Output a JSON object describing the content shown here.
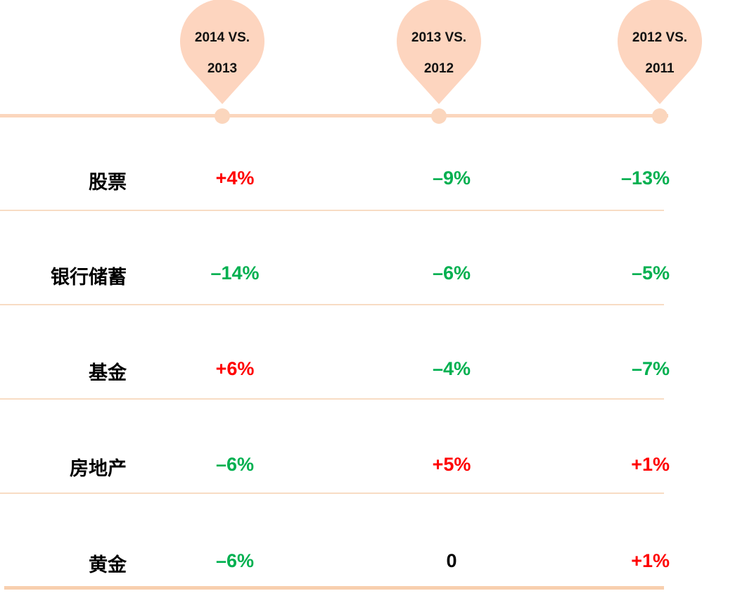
{
  "colors": {
    "pin": "#fdd5bf",
    "timeline": "#fbd6bd",
    "positive": "#ff0000",
    "negative": "#00b050",
    "neutral": "#000000"
  },
  "chart_data": {
    "type": "table",
    "columns": [
      "2014 VS.\n2013",
      "2013 VS.\n2012",
      "2012 VS.\n2011"
    ],
    "rows": [
      {
        "label": "股票",
        "values": [
          "+4%",
          "–9%",
          "–13%"
        ]
      },
      {
        "label": "银行储蓄",
        "values": [
          "–14%",
          "–6%",
          "–5%"
        ]
      },
      {
        "label": "基金",
        "values": [
          "+6%",
          "–4%",
          "–7%"
        ]
      },
      {
        "label": "房地产",
        "values": [
          "–6%",
          "+5%",
          "+1%"
        ]
      },
      {
        "label": "黄金",
        "values": [
          "–6%",
          "0",
          "+1%"
        ]
      }
    ],
    "numeric": [
      [
        4,
        -9,
        -13
      ],
      [
        -14,
        -6,
        -5
      ],
      [
        6,
        -4,
        -7
      ],
      [
        -6,
        5,
        1
      ],
      [
        -6,
        0,
        1
      ]
    ]
  }
}
